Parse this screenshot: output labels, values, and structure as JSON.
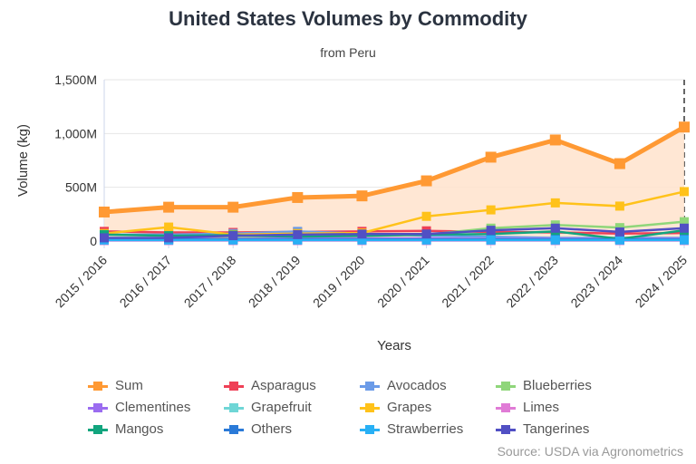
{
  "chart_data": {
    "type": "line",
    "title": "United States Volumes by Commodity",
    "subtitle": "from Peru",
    "xlabel": "Years",
    "ylabel": "Volume (kg)",
    "ylim": [
      0,
      1500000000
    ],
    "yticks": [
      "0",
      "500M",
      "1,000M",
      "1,500M"
    ],
    "grid": true,
    "legend": "bottom",
    "categories": [
      "2015 / 2016",
      "2016 / 2017",
      "2017 / 2018",
      "2018 / 2019",
      "2019 / 2020",
      "2020 / 2021",
      "2021 / 2022",
      "2022 / 2023",
      "2023 / 2024",
      "2024 / 2025"
    ],
    "series": [
      {
        "name": "Sum",
        "color": "#ff9933",
        "area": true,
        "values": [
          270,
          315,
          315,
          405,
          420,
          560,
          780,
          940,
          720,
          1060
        ]
      },
      {
        "name": "Asparagus",
        "color": "#ef4056",
        "values": [
          90,
          80,
          80,
          85,
          90,
          95,
          85,
          80,
          70,
          75
        ]
      },
      {
        "name": "Avocados",
        "color": "#6b9be8",
        "values": [
          60,
          60,
          70,
          90,
          70,
          50,
          40,
          30,
          30,
          30
        ]
      },
      {
        "name": "Blueberries",
        "color": "#8fd67a",
        "values": [
          20,
          25,
          30,
          40,
          45,
          60,
          120,
          150,
          125,
          180
        ]
      },
      {
        "name": "Clementines",
        "color": "#9b6cf0",
        "values": [
          20,
          20,
          20,
          25,
          25,
          25,
          20,
          20,
          20,
          20
        ]
      },
      {
        "name": "Grapefruit",
        "color": "#6fd6d6",
        "values": [
          5,
          5,
          5,
          5,
          5,
          5,
          5,
          5,
          5,
          5
        ]
      },
      {
        "name": "Grapes",
        "color": "#ffc21a",
        "values": [
          70,
          130,
          60,
          70,
          75,
          230,
          290,
          355,
          325,
          460
        ]
      },
      {
        "name": "Limes",
        "color": "#e07bd6",
        "values": [
          5,
          5,
          5,
          5,
          5,
          5,
          5,
          5,
          5,
          5
        ]
      },
      {
        "name": "Mangos",
        "color": "#12a57e",
        "values": [
          60,
          50,
          55,
          40,
          50,
          60,
          65,
          90,
          20,
          100
        ]
      },
      {
        "name": "Others",
        "color": "#2a7ad8",
        "values": [
          15,
          15,
          15,
          15,
          15,
          15,
          15,
          15,
          15,
          15
        ]
      },
      {
        "name": "Strawberries",
        "color": "#28b0f5",
        "values": [
          10,
          10,
          10,
          10,
          10,
          10,
          10,
          10,
          10,
          10
        ]
      },
      {
        "name": "Tangerines",
        "color": "#5150c4",
        "values": [
          30,
          30,
          50,
          60,
          65,
          65,
          100,
          120,
          85,
          120
        ]
      }
    ],
    "value_unit": "M kg",
    "source": "Source: USDA via Agronometrics"
  }
}
